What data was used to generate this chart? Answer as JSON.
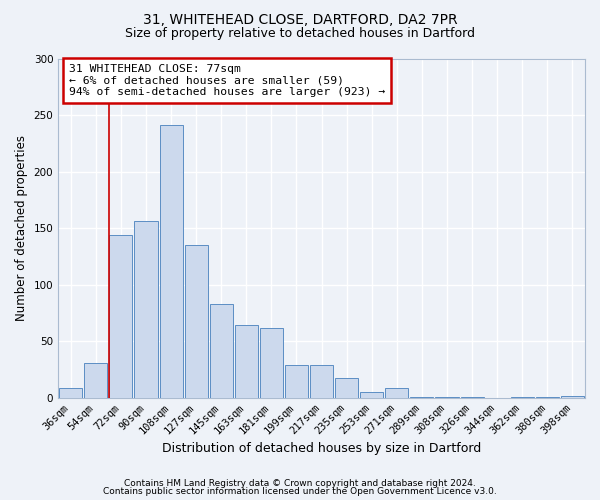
{
  "title1": "31, WHITEHEAD CLOSE, DARTFORD, DA2 7PR",
  "title2": "Size of property relative to detached houses in Dartford",
  "xlabel": "Distribution of detached houses by size in Dartford",
  "ylabel": "Number of detached properties",
  "categories": [
    "36sqm",
    "54sqm",
    "72sqm",
    "90sqm",
    "108sqm",
    "127sqm",
    "145sqm",
    "163sqm",
    "181sqm",
    "199sqm",
    "217sqm",
    "235sqm",
    "253sqm",
    "271sqm",
    "289sqm",
    "308sqm",
    "326sqm",
    "344sqm",
    "362sqm",
    "380sqm",
    "398sqm"
  ],
  "values": [
    9,
    31,
    144,
    157,
    242,
    135,
    83,
    65,
    62,
    29,
    29,
    18,
    5,
    9,
    1,
    1,
    1,
    0,
    1,
    1,
    2
  ],
  "bar_color": "#ccd9ed",
  "bar_edge_color": "#5b8ec4",
  "background_color": "#eef2f8",
  "grid_color": "#ffffff",
  "vline_x_index": 2,
  "vline_color": "#cc0000",
  "annotation_title": "31 WHITEHEAD CLOSE: 77sqm",
  "annotation_line2": "← 6% of detached houses are smaller (59)",
  "annotation_line3": "94% of semi-detached houses are larger (923) →",
  "annotation_box_color": "#ffffff",
  "annotation_box_edge": "#cc0000",
  "ylim": [
    0,
    300
  ],
  "yticks": [
    0,
    50,
    100,
    150,
    200,
    250,
    300
  ],
  "footnote1": "Contains HM Land Registry data © Crown copyright and database right 2024.",
  "footnote2": "Contains public sector information licensed under the Open Government Licence v3.0."
}
